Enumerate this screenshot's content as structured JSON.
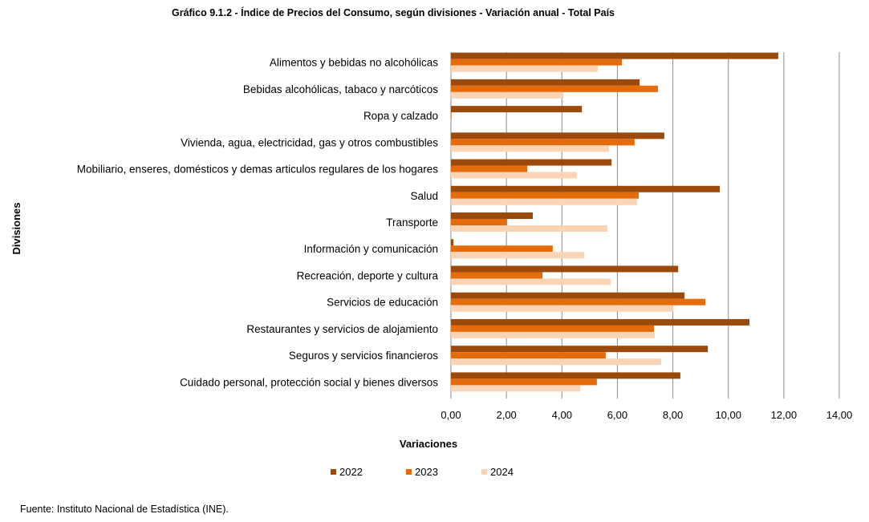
{
  "title": "Gráfico 9.1.2 -  Índice de Precios del Consumo, según divisiones - Variación  anual  - Total País",
  "source": "Fuente: Instituto Nacional de Estadística (INE).",
  "chart_data": {
    "type": "bar",
    "orientation": "horizontal",
    "title": "Gráfico 9.1.2 -  Índice de Precios del Consumo, según divisiones - Variación  anual  - Total País",
    "xlabel": "Variaciones",
    "ylabel": "Divisiones",
    "xlim": [
      0,
      14
    ],
    "xticks": [
      "0,00",
      "2,00",
      "4,00",
      "6,00",
      "8,00",
      "10,00",
      "12,00",
      "14,00"
    ],
    "grid": true,
    "legend": "bottom",
    "categories": [
      "Alimentos y bebidas no alcohólicas",
      "Bebidas alcohólicas, tabaco y narcóticos",
      "Ropa y calzado",
      "Vivienda, agua, electricidad, gas y otros combustibles",
      "Mobiliario, enseres, domésticos y demas articulos regulares de los hogares",
      "Salud",
      "Transporte",
      "Información y comunicación",
      "Recreación, deporte y cultura",
      "Servicios de educación",
      "Restaurantes y servicios de alojamiento",
      "Seguros y servicios financieros",
      "Cuidado personal, protección social y bienes diversos"
    ],
    "series": [
      {
        "name": "2022",
        "color": "#9C4A0C",
        "values": [
          11.8,
          6.8,
          4.72,
          7.69,
          5.79,
          9.69,
          2.95,
          0.09,
          8.19,
          8.42,
          10.76,
          9.26,
          8.27
        ]
      },
      {
        "name": "2023",
        "color": "#E46C0A",
        "values": [
          6.16,
          7.46,
          0.02,
          6.62,
          2.75,
          6.77,
          2.02,
          3.67,
          3.3,
          9.17,
          7.32,
          5.58,
          5.26
        ]
      },
      {
        "name": "2024",
        "color": "#FAD4B4",
        "values": [
          5.29,
          4.05,
          0.0,
          5.7,
          4.54,
          6.71,
          5.64,
          4.8,
          5.76,
          8.01,
          7.35,
          7.58,
          4.66
        ]
      }
    ]
  }
}
